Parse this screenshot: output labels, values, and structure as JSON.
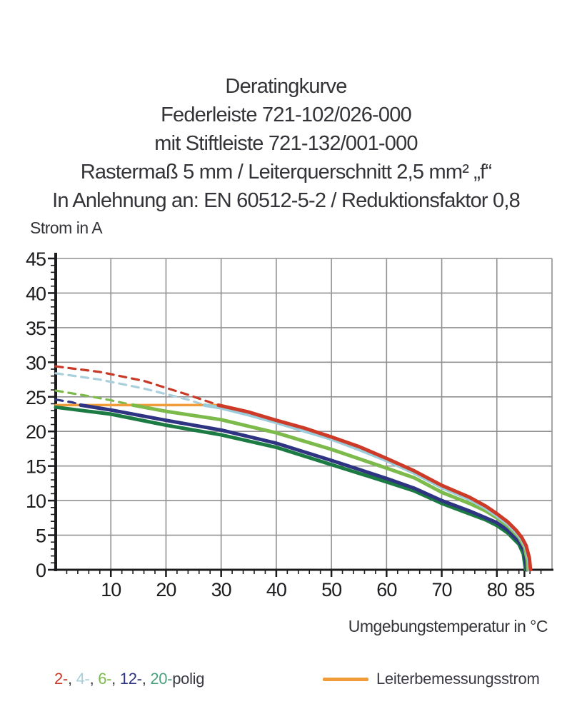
{
  "title_block": {
    "lines": [
      "Deratingkurve",
      "Federleiste 721-102/026-000",
      "mit Stiftleiste 721-132/001-000",
      "Rastermaß 5 mm / Leiterquerschnitt 2,5 mm² „f“",
      "In Anlehnung an: EN 60512-5-2 / Reduktionsfaktor 0,8"
    ]
  },
  "legend": {
    "poles": [
      {
        "label": "2-",
        "color": "#c73a28"
      },
      {
        "label": "4-",
        "color": "#a9cfda"
      },
      {
        "label": "6-",
        "color": "#7cba4b"
      },
      {
        "label": "12-",
        "color": "#2e3382"
      },
      {
        "label": "20-",
        "color": "#4aa07c"
      }
    ],
    "separator": ", ",
    "suffix": "polig",
    "conductor": {
      "label": "Leiterbemessungsstrom",
      "color": "#f09c38"
    }
  },
  "chart_data": {
    "type": "line",
    "title": "Deratingkurve",
    "xlabel": "Umgebungstemperatur in °C",
    "ylabel": "Strom in A",
    "xlim": [
      0,
      90
    ],
    "ylim": [
      0,
      45
    ],
    "x_major_ticks": [
      10,
      20,
      30,
      40,
      50,
      60,
      70,
      80,
      85
    ],
    "x_minor_step": 2,
    "y_major_ticks": [
      0,
      5,
      10,
      15,
      20,
      25,
      30,
      35,
      40,
      45
    ],
    "y_minor_step": 1,
    "grid": {
      "x_step": 10,
      "y_step": 5,
      "color": "#919193"
    },
    "axis_color": "#1c1c1e",
    "series": [
      {
        "name": "12-polig-dashed",
        "color": "#2e3382",
        "style": "dashed",
        "width": 3.2,
        "points": [
          [
            0,
            24.6
          ],
          [
            3,
            24.2
          ],
          [
            4.5,
            23.8
          ]
        ]
      },
      {
        "name": "6-polig-dashed",
        "color": "#7cba4b",
        "style": "dashed",
        "width": 3.2,
        "points": [
          [
            0,
            25.9
          ],
          [
            6,
            25.1
          ],
          [
            10,
            24.5
          ],
          [
            14,
            23.8
          ]
        ]
      },
      {
        "name": "4-polig-dashed",
        "color": "#a9cfda",
        "style": "dashed",
        "width": 3.2,
        "points": [
          [
            0,
            28.4
          ],
          [
            8,
            27.5
          ],
          [
            16,
            26.2
          ],
          [
            24,
            24.6
          ],
          [
            27,
            23.8
          ]
        ]
      },
      {
        "name": "2-polig-dashed",
        "color": "#c73a28",
        "style": "dashed",
        "width": 3.2,
        "points": [
          [
            0,
            29.4
          ],
          [
            8,
            28.6
          ],
          [
            16,
            27.3
          ],
          [
            24,
            25.3
          ],
          [
            29.5,
            23.8
          ]
        ]
      },
      {
        "name": "Leiterbemessungsstrom",
        "color": "#f09c38",
        "style": "solid",
        "width": 3.5,
        "points": [
          [
            0,
            23.8
          ],
          [
            30,
            23.8
          ]
        ]
      },
      {
        "name": "20-polig",
        "color": "#1c7b42",
        "style": "solid",
        "width": 5,
        "points": [
          [
            0,
            23.5
          ],
          [
            10,
            22.5
          ],
          [
            20,
            20.9
          ],
          [
            30,
            19.5
          ],
          [
            40,
            17.7
          ],
          [
            50,
            15.2
          ],
          [
            60,
            12.7
          ],
          [
            65,
            11.4
          ],
          [
            70,
            9.6
          ],
          [
            75,
            8.1
          ],
          [
            78,
            7.2
          ],
          [
            80,
            6.4
          ],
          [
            82,
            5.3
          ],
          [
            84,
            3.7
          ],
          [
            84.8,
            2.3
          ],
          [
            85.2,
            0
          ]
        ]
      },
      {
        "name": "12-polig",
        "color": "#2e3382",
        "style": "solid",
        "width": 5,
        "points": [
          [
            4.5,
            23.8
          ],
          [
            10,
            23.1
          ],
          [
            20,
            21.6
          ],
          [
            30,
            20.2
          ],
          [
            40,
            18.3
          ],
          [
            50,
            15.8
          ],
          [
            60,
            13.2
          ],
          [
            65,
            11.8
          ],
          [
            70,
            10.0
          ],
          [
            75,
            8.5
          ],
          [
            78,
            7.5
          ],
          [
            80,
            6.8
          ],
          [
            82,
            5.7
          ],
          [
            84,
            4.1
          ],
          [
            85,
            2.7
          ],
          [
            85.4,
            0
          ]
        ]
      },
      {
        "name": "6-polig",
        "color": "#7cba4b",
        "style": "solid",
        "width": 5,
        "points": [
          [
            14,
            23.8
          ],
          [
            20,
            22.9
          ],
          [
            30,
            21.7
          ],
          [
            40,
            19.8
          ],
          [
            50,
            17.4
          ],
          [
            60,
            14.7
          ],
          [
            65,
            13.3
          ],
          [
            70,
            11.2
          ],
          [
            75,
            9.6
          ],
          [
            78,
            8.5
          ],
          [
            80,
            7.5
          ],
          [
            82,
            6.3
          ],
          [
            84,
            4.7
          ],
          [
            85,
            3.3
          ],
          [
            85.5,
            1.4
          ],
          [
            85.6,
            0
          ]
        ]
      },
      {
        "name": "4-polig",
        "color": "#9bccd9",
        "style": "solid",
        "width": 5,
        "points": [
          [
            27,
            23.8
          ],
          [
            30,
            23.4
          ],
          [
            35,
            22.4
          ],
          [
            40,
            21.3
          ],
          [
            45,
            20.1
          ],
          [
            50,
            18.9
          ],
          [
            55,
            17.4
          ],
          [
            60,
            15.8
          ],
          [
            65,
            14.0
          ],
          [
            70,
            11.9
          ],
          [
            75,
            10.2
          ],
          [
            78,
            8.9
          ],
          [
            80,
            7.8
          ],
          [
            82,
            6.6
          ],
          [
            83.5,
            5.4
          ],
          [
            84.5,
            4.4
          ],
          [
            85.3,
            3.1
          ],
          [
            85.8,
            1.2
          ],
          [
            85.9,
            0
          ]
        ]
      },
      {
        "name": "2-polig",
        "color": "#cd3a27",
        "style": "solid",
        "width": 5,
        "points": [
          [
            29.5,
            23.8
          ],
          [
            35,
            22.8
          ],
          [
            40,
            21.6
          ],
          [
            45,
            20.5
          ],
          [
            50,
            19.2
          ],
          [
            55,
            17.8
          ],
          [
            60,
            16.1
          ],
          [
            65,
            14.3
          ],
          [
            70,
            12.2
          ],
          [
            75,
            10.5
          ],
          [
            78,
            9.2
          ],
          [
            80,
            8.1
          ],
          [
            82,
            6.9
          ],
          [
            83.5,
            5.7
          ],
          [
            84.5,
            4.7
          ],
          [
            85.3,
            3.5
          ],
          [
            85.9,
            1.7
          ],
          [
            86.1,
            0
          ]
        ]
      }
    ]
  }
}
